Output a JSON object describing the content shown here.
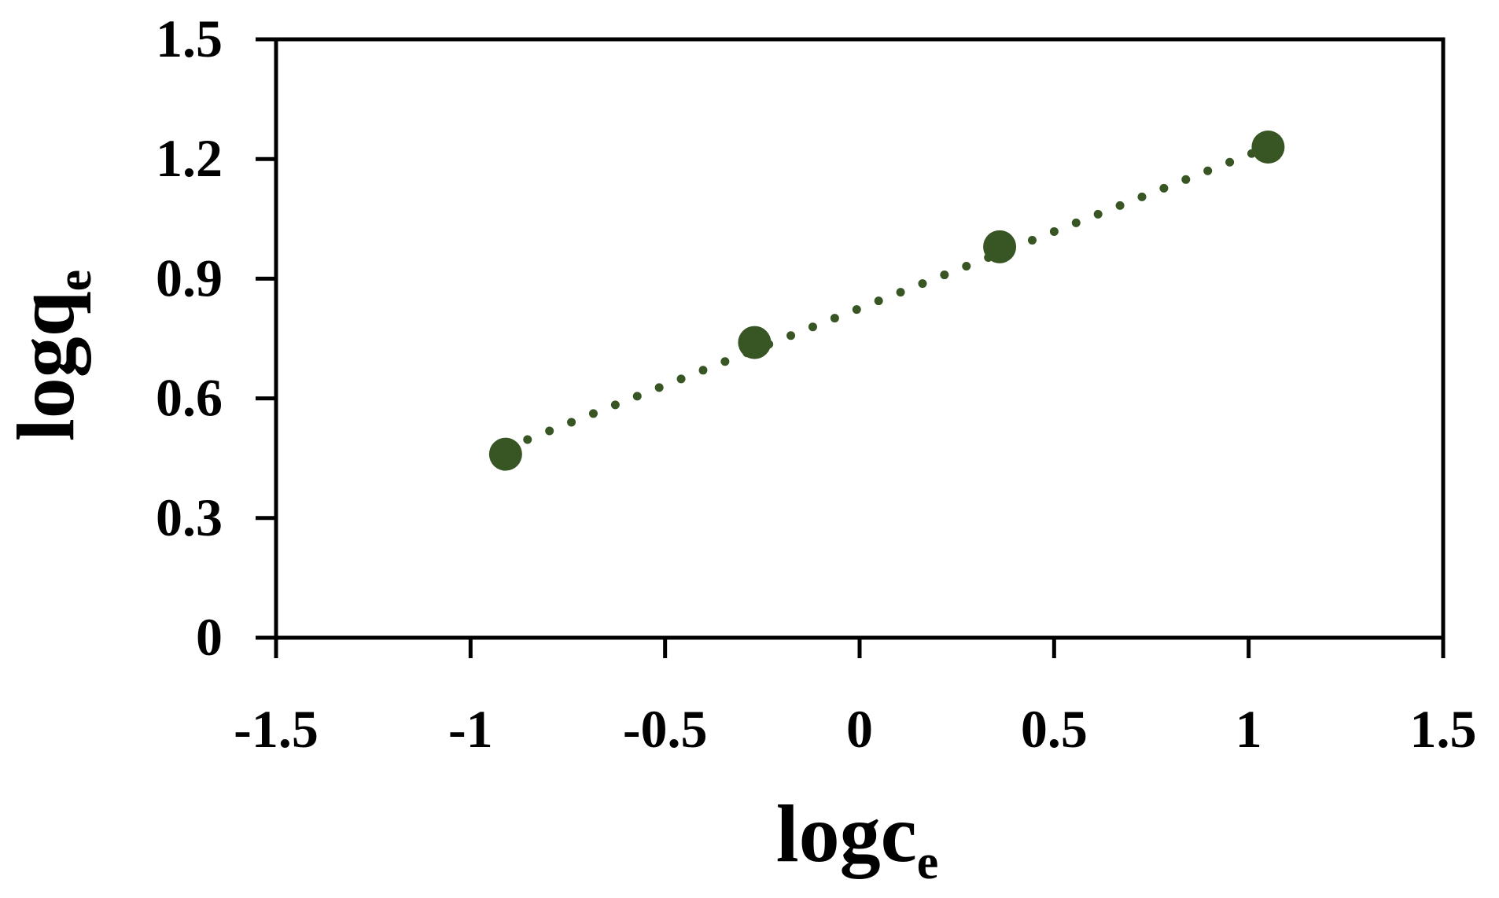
{
  "chart_data": {
    "type": "scatter",
    "title": "",
    "xlabel": {
      "base": "logc",
      "subscript": "e"
    },
    "ylabel": {
      "base": "logq",
      "subscript": "e"
    },
    "xlim": [
      -1.5,
      1.5
    ],
    "ylim": [
      0,
      1.5
    ],
    "xticks": [
      -1.5,
      -1,
      -0.5,
      0,
      0.5,
      1,
      1.5
    ],
    "yticks": [
      0,
      0.3,
      0.6,
      0.9,
      1.2,
      1.5
    ],
    "xtick_labels": [
      "-1.5",
      "-1",
      "-0.5",
      "0",
      "0.5",
      "1",
      "1.5"
    ],
    "ytick_labels": [
      "0",
      "0.3",
      "0.6",
      "0.9",
      "1.2",
      "1.5"
    ],
    "grid": false,
    "legend": "none",
    "series": [
      {
        "x": [
          -0.91,
          -0.27,
          0.36,
          1.05
        ],
        "y": [
          0.46,
          0.74,
          0.98,
          1.23
        ],
        "marker_color": "#375623"
      }
    ],
    "trendline": {
      "style": "dotted",
      "color": "#375623",
      "x_range": [
        -0.91,
        1.05
      ],
      "y_range": [
        0.475,
        1.23
      ]
    }
  }
}
